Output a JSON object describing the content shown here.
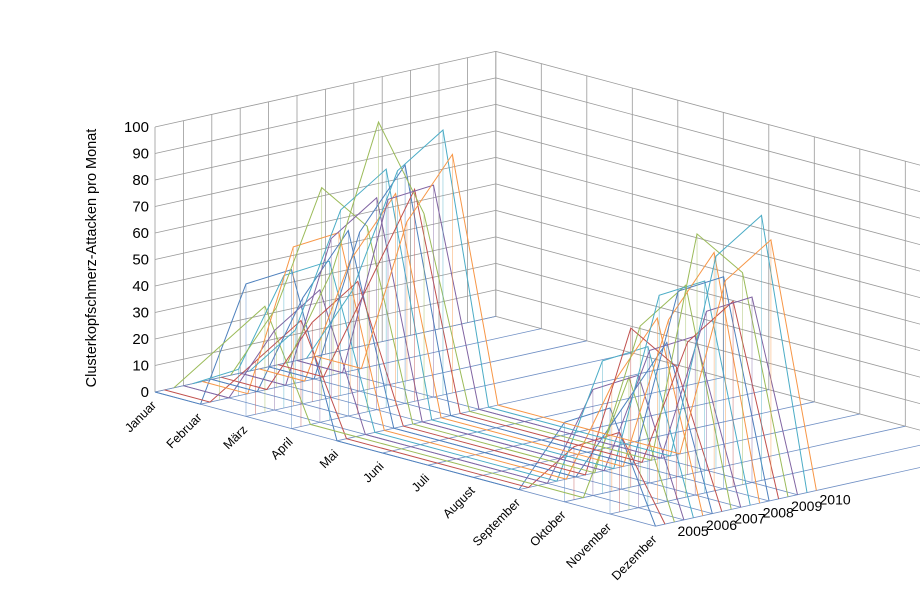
{
  "chart_data": {
    "type": "line",
    "subtype": "3d-line-ribbon",
    "title": "",
    "ylabel": "Clusterkopfschmerz-Attacken pro Monat",
    "xlabel": "",
    "zlabel": "",
    "ylim": [
      0,
      100
    ],
    "y_ticks": [
      "0",
      "10",
      "20",
      "30",
      "40",
      "50",
      "60",
      "70",
      "80",
      "90",
      "100"
    ],
    "categories": [
      "Januar",
      "Februar",
      "März",
      "April",
      "Mai",
      "Juni",
      "Juli",
      "August",
      "September",
      "Oktober",
      "November",
      "Dezember"
    ],
    "depth_categories": [
      "2005",
      "2006",
      "2007",
      "2008",
      "2009",
      "2010"
    ],
    "grid": true,
    "legend": "none",
    "series": [
      {
        "year": "2005",
        "color": "#4f81bd",
        "values": [
          0,
          0,
          50,
          60,
          0,
          0,
          0,
          0,
          0,
          30,
          40,
          0
        ]
      },
      {
        "year": "2005",
        "color": "#c0504d",
        "values": [
          0,
          0,
          20,
          40,
          0,
          0,
          0,
          0,
          0,
          20,
          30,
          0
        ]
      },
      {
        "year": "2005",
        "color": "#9bbb59",
        "values": [
          0,
          20,
          40,
          0,
          0,
          0,
          0,
          0,
          0,
          0,
          50,
          0
        ]
      },
      {
        "year": "2006",
        "color": "#8064a2",
        "values": [
          0,
          0,
          30,
          50,
          0,
          0,
          0,
          0,
          0,
          40,
          50,
          0
        ]
      },
      {
        "year": "2006",
        "color": "#4bacc6",
        "values": [
          0,
          10,
          50,
          60,
          0,
          0,
          0,
          0,
          0,
          50,
          60,
          0
        ]
      },
      {
        "year": "2006",
        "color": "#f79646",
        "values": [
          0,
          0,
          60,
          70,
          0,
          0,
          0,
          0,
          0,
          40,
          70,
          0
        ]
      },
      {
        "year": "2007",
        "color": "#4f81bd",
        "values": [
          0,
          0,
          40,
          70,
          0,
          0,
          0,
          0,
          0,
          30,
          60,
          0
        ]
      },
      {
        "year": "2007",
        "color": "#c0504d",
        "values": [
          0,
          0,
          30,
          50,
          0,
          0,
          0,
          0,
          0,
          60,
          50,
          0
        ]
      },
      {
        "year": "2007",
        "color": "#9bbb59",
        "values": [
          0,
          30,
          80,
          70,
          0,
          0,
          0,
          0,
          0,
          60,
          80,
          0
        ]
      },
      {
        "year": "2008",
        "color": "#8064a2",
        "values": [
          0,
          0,
          60,
          80,
          0,
          0,
          0,
          0,
          0,
          50,
          60,
          0
        ]
      },
      {
        "year": "2008",
        "color": "#4bacc6",
        "values": [
          0,
          20,
          70,
          90,
          0,
          0,
          0,
          0,
          0,
          70,
          80,
          0
        ]
      },
      {
        "year": "2008",
        "color": "#f79646",
        "values": [
          0,
          0,
          50,
          80,
          0,
          0,
          0,
          0,
          0,
          60,
          90,
          0
        ]
      },
      {
        "year": "2009",
        "color": "#4f81bd",
        "values": [
          0,
          0,
          60,
          90,
          0,
          0,
          0,
          0,
          0,
          70,
          80,
          0
        ]
      },
      {
        "year": "2009",
        "color": "#c0504d",
        "values": [
          0,
          0,
          40,
          80,
          0,
          0,
          0,
          0,
          0,
          50,
          70,
          0
        ]
      },
      {
        "year": "2009",
        "color": "#9bbb59",
        "values": [
          0,
          40,
          100,
          70,
          0,
          0,
          0,
          0,
          0,
          90,
          80,
          0
        ]
      },
      {
        "year": "2010",
        "color": "#8064a2",
        "values": [
          0,
          0,
          70,
          80,
          0,
          0,
          0,
          0,
          0,
          60,
          70,
          0
        ]
      },
      {
        "year": "2010",
        "color": "#4bacc6",
        "values": [
          0,
          30,
          80,
          100,
          0,
          0,
          0,
          0,
          0,
          80,
          100,
          0
        ]
      },
      {
        "year": "2010",
        "color": "#f79646",
        "values": [
          0,
          0,
          60,
          90,
          0,
          0,
          0,
          0,
          0,
          70,
          90,
          0
        ]
      }
    ]
  }
}
